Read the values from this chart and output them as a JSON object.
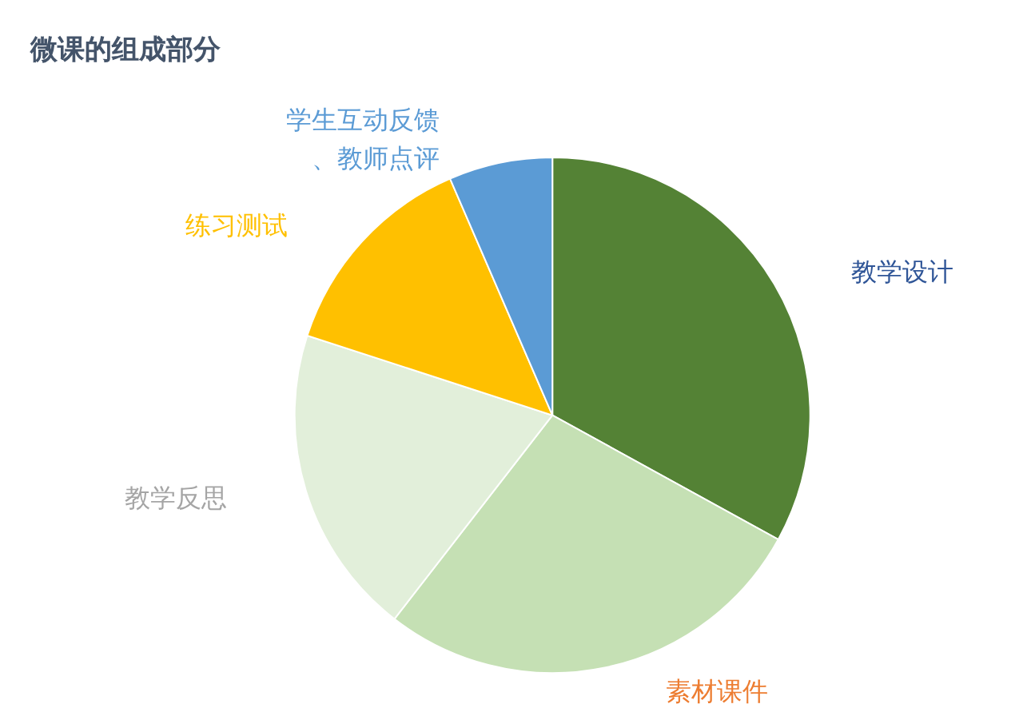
{
  "chart_data": {
    "type": "pie",
    "title": "微课的组成部分",
    "categories": [
      "教学设计",
      "素材课件",
      "教学反思",
      "练习测试",
      "学生互动反馈、教师点评"
    ],
    "values": [
      33,
      27.5,
      19.5,
      13.5,
      6.5
    ],
    "colors": [
      "#548235",
      "#c5e0b4",
      "#e2efda",
      "#ffc000",
      "#5b9bd5"
    ],
    "legend": false
  }
}
